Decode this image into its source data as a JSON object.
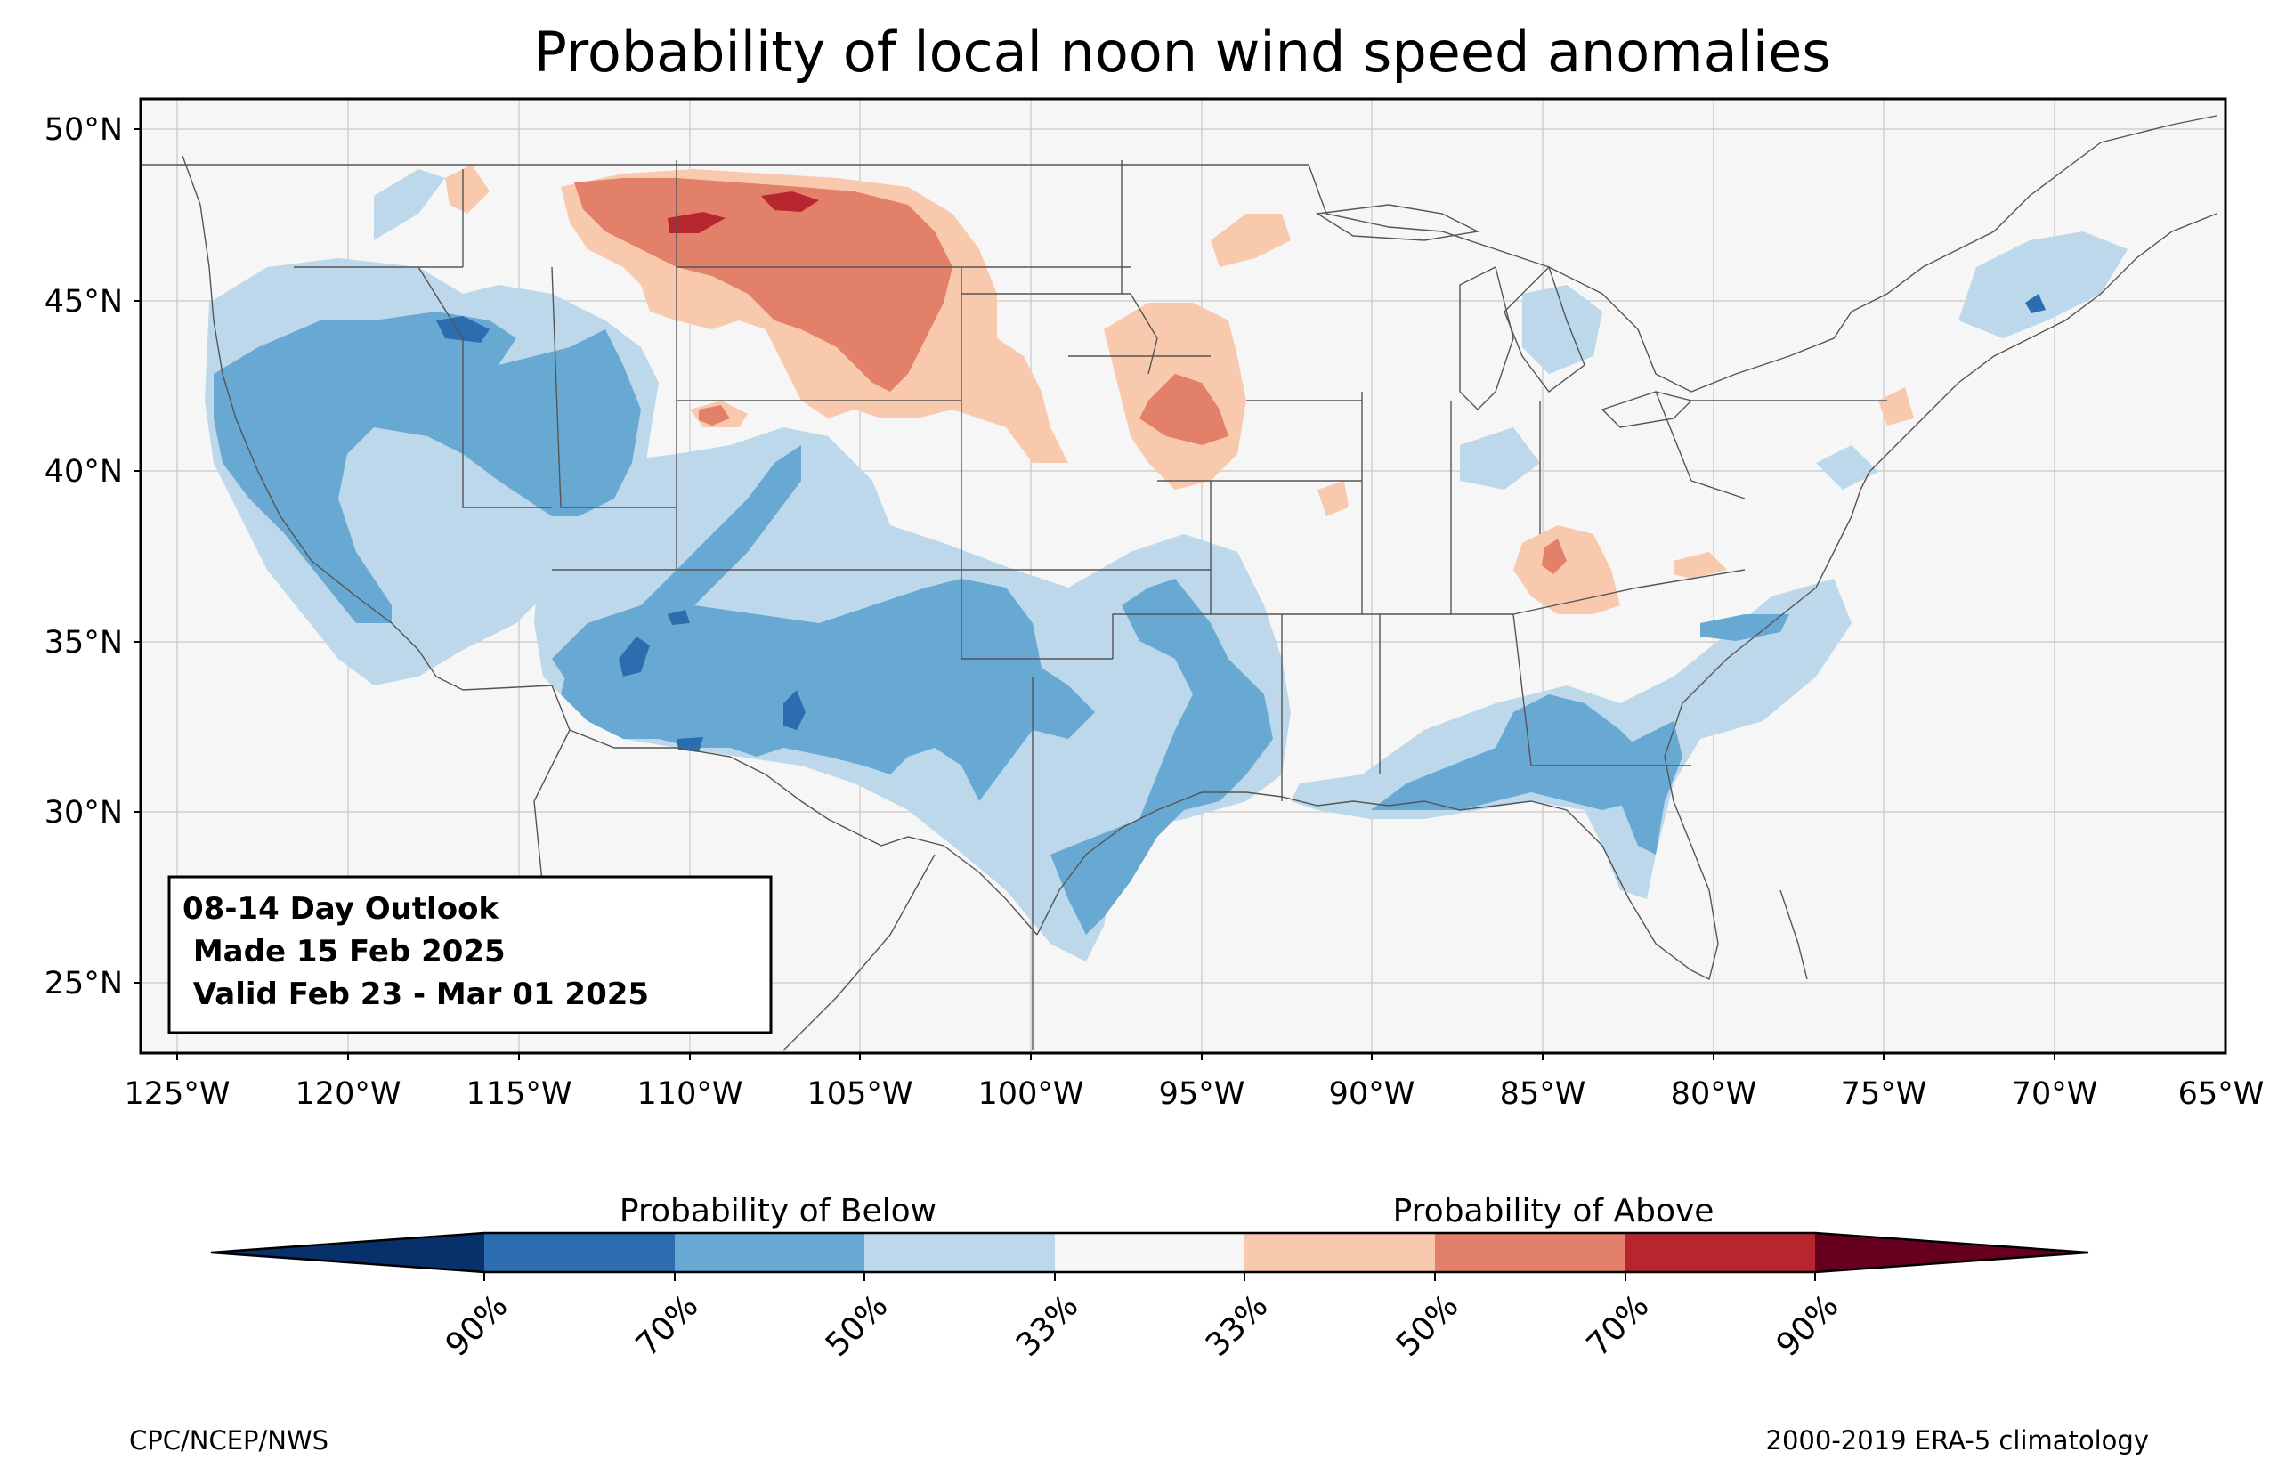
{
  "title": "Probability of local noon wind speed anomalies",
  "lat_ticks": [
    "50°N",
    "45°N",
    "40°N",
    "35°N",
    "30°N",
    "25°N"
  ],
  "lon_ticks": [
    "125°W",
    "120°W",
    "115°W",
    "110°W",
    "105°W",
    "100°W",
    "95°W",
    "90°W",
    "85°W",
    "80°W",
    "75°W",
    "70°W",
    "65°W"
  ],
  "outlook_box": {
    "line1": "08-14 Day Outlook",
    "line2": " Made 15 Feb 2025",
    "line3": " Valid Feb 23 - Mar 01 2025"
  },
  "colorbar": {
    "below_label": "Probability of Below",
    "above_label": "Probability of Above",
    "tick_labels": [
      "90%",
      "70%",
      "50%",
      "33%",
      "33%",
      "50%",
      "70%",
      "90%"
    ],
    "colors": [
      "#08306b",
      "#2c6db0",
      "#67a9d2",
      "#bcd8ea",
      "#f6f6f6",
      "#f9c9ae",
      "#e2806a",
      "#b7262e",
      "#67001f"
    ]
  },
  "credits": {
    "left": "CPC/NCEP/NWS",
    "right": "2000-2019 ERA-5 climatology"
  }
}
